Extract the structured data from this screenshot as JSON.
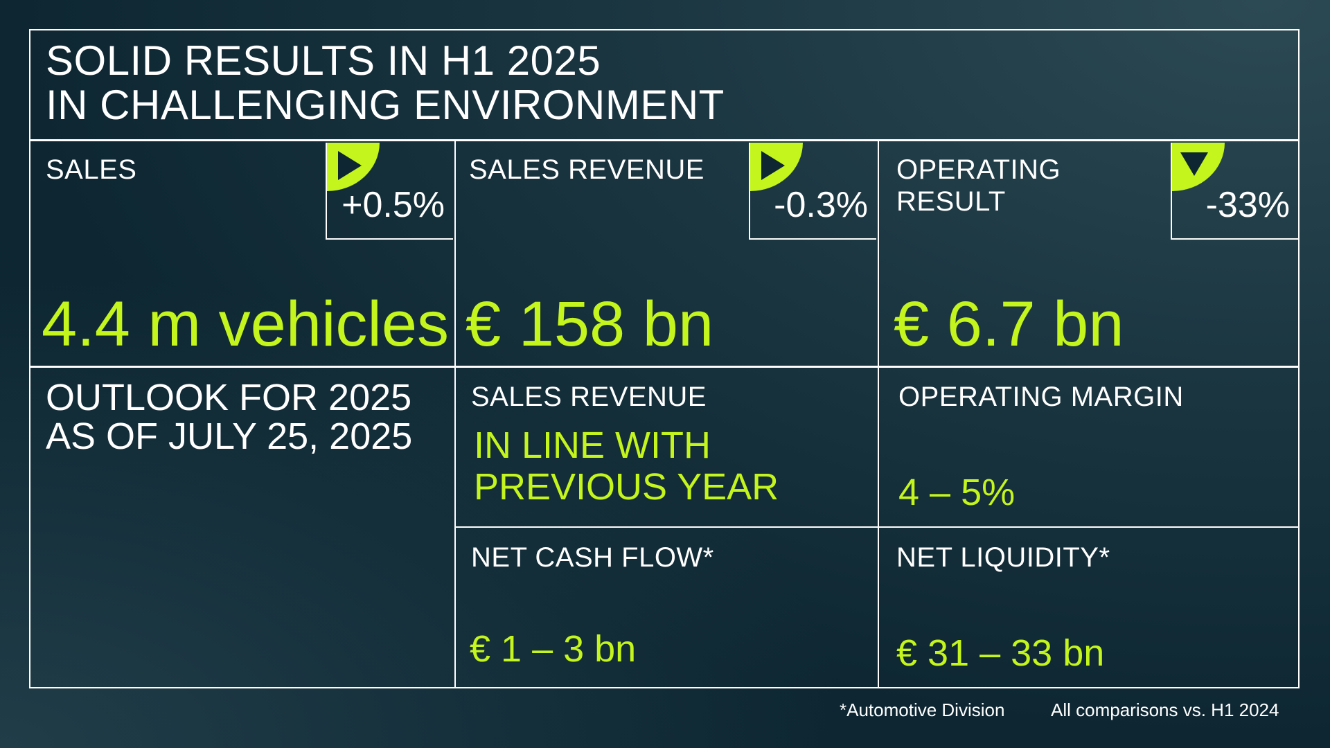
{
  "header": {
    "title_line1": "SOLID RESULTS IN H1 2025",
    "title_line2": "IN CHALLENGING ENVIRONMENT"
  },
  "kpis": [
    {
      "label": "SALES",
      "label_line2": "",
      "change": "+0.5%",
      "direction": "flat",
      "value": "4.4 m vehicles"
    },
    {
      "label": "SALES REVENUE",
      "label_line2": "",
      "change": "-0.3%",
      "direction": "flat",
      "value": "€ 158 bn"
    },
    {
      "label": "OPERATING",
      "label_line2": "RESULT",
      "change": "-33%",
      "direction": "down",
      "value": "€ 6.7 bn"
    }
  ],
  "outlook": {
    "title_line1": "OUTLOOK FOR 2025",
    "title_line2": "AS OF JULY 25, 2025",
    "sales_revenue": {
      "label": "SALES REVENUE",
      "value_line1": "IN LINE WITH",
      "value_line2": "PREVIOUS YEAR"
    },
    "operating_margin": {
      "label": "OPERATING MARGIN",
      "value": "4 – 5%"
    },
    "net_cash_flow": {
      "label": "NET CASH FLOW*",
      "value": "€ 1 – 3 bn"
    },
    "net_liquidity": {
      "label": "NET LIQUIDITY*",
      "value": "€ 31 – 33 bn"
    }
  },
  "footer": {
    "note": "*Automotive Division",
    "comparison": "All comparisons vs. H1 2024"
  },
  "colors": {
    "accent": "#c4f51c",
    "background": "#0d2632",
    "line": "#ffffff"
  }
}
